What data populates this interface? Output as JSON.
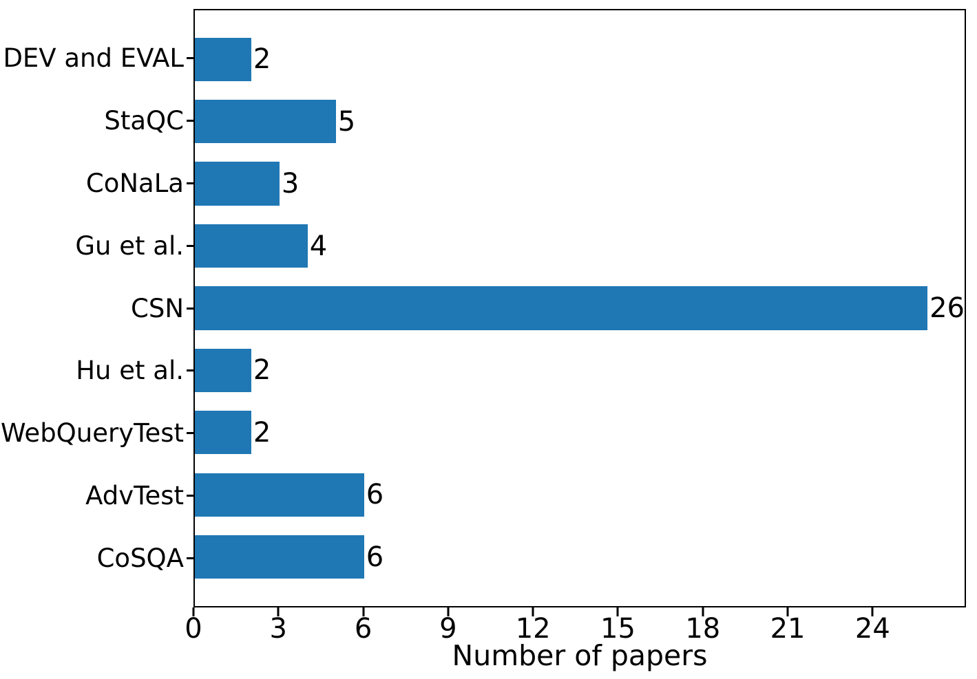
{
  "chart_data": {
    "type": "bar",
    "orientation": "horizontal",
    "title": "",
    "xlabel": "Number of papers",
    "ylabel": "",
    "categories": [
      "DEV and EVAL",
      "StaQC",
      "CoNaLa",
      "Gu et al.",
      "CSN",
      "Hu et al.",
      "WebQueryTest",
      "AdvTest",
      "CoSQA"
    ],
    "values": [
      2,
      5,
      3,
      4,
      26,
      2,
      2,
      6,
      6
    ],
    "value_labels": [
      "2",
      "5",
      "3",
      "4",
      "26",
      "2",
      "2",
      "6",
      "6"
    ],
    "xticks": [
      0,
      3,
      6,
      9,
      12,
      15,
      18,
      21,
      24
    ],
    "xlim": [
      0,
      27.3
    ],
    "bar_color": "#1f77b4",
    "grid": false,
    "legend": null,
    "value_labels_shown": true
  }
}
